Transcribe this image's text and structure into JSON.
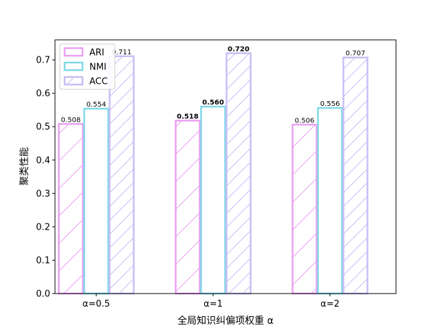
{
  "chart_data": {
    "type": "bar",
    "xlabel": "全局知识纠偏项权重 α",
    "ylabel": "聚类性能",
    "categories": [
      "α=0.5",
      "α=1",
      "α=2"
    ],
    "ylim": [
      0,
      0.76
    ],
    "yticks": [
      "0.0",
      "0.1",
      "0.2",
      "0.3",
      "0.4",
      "0.5",
      "0.6",
      "0.7"
    ],
    "legend_position": "top-left",
    "grid": false,
    "series": [
      {
        "name": "ARI",
        "values": [
          0.508,
          0.518,
          0.506
        ],
        "labels": [
          "0.508",
          "0.518",
          "0.506"
        ],
        "color": "#e9a1f0",
        "pattern": "diagonal"
      },
      {
        "name": "NMI",
        "values": [
          0.554,
          0.56,
          0.556
        ],
        "labels": [
          "0.554",
          "0.560",
          "0.556"
        ],
        "color": "#7fd8e8",
        "pattern": "none"
      },
      {
        "name": "ACC",
        "values": [
          0.711,
          0.72,
          0.707
        ],
        "labels": [
          "0.711",
          "0.720",
          "0.707"
        ],
        "color": "#c9bdf5",
        "pattern": "dense-diagonal"
      }
    ],
    "bold_labels": [
      "0.518",
      "0.560",
      "0.720"
    ]
  }
}
